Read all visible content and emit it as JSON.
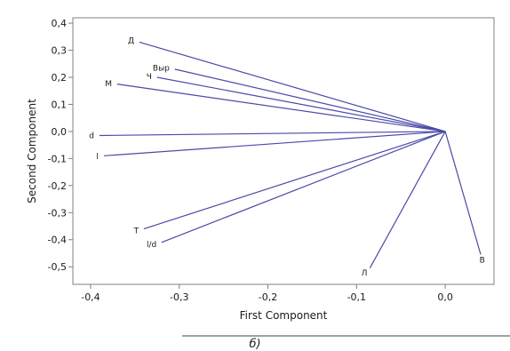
{
  "chart_data": {
    "type": "biplot",
    "xlabel": "First Component",
    "ylabel": "Second Component",
    "xlim": [
      -0.42,
      0.055
    ],
    "ylim": [
      -0.565,
      0.42
    ],
    "x_ticks": [
      -0.4,
      -0.3,
      -0.2,
      -0.1,
      0.0
    ],
    "x_tick_labels": [
      "-0,4",
      "-0,3",
      "-0,2",
      "-0,1",
      "0,0"
    ],
    "y_ticks": [
      0.4,
      0.3,
      0.2,
      0.1,
      0.0,
      -0.1,
      -0.2,
      -0.3,
      -0.4,
      -0.5
    ],
    "y_tick_labels": [
      "0,4",
      "0,3",
      "0,2",
      "0,1",
      "0,0",
      "-0,1",
      "-0,2",
      "-0,3",
      "-0,4",
      "-0,5"
    ],
    "origin": [
      0,
      0
    ],
    "line_color": "#4a4aa8",
    "vectors": [
      {
        "label": "Д",
        "x": -0.345,
        "y": 0.33
      },
      {
        "label": "Выр",
        "x": -0.305,
        "y": 0.23
      },
      {
        "label": "Ч",
        "x": -0.325,
        "y": 0.2
      },
      {
        "label": "М",
        "x": -0.37,
        "y": 0.175
      },
      {
        "label": "d",
        "x": -0.39,
        "y": -0.015
      },
      {
        "label": "l",
        "x": -0.385,
        "y": -0.09
      },
      {
        "label": "Т",
        "x": -0.34,
        "y": -0.36
      },
      {
        "label": "l/d",
        "x": -0.32,
        "y": -0.41
      },
      {
        "label": "Л",
        "x": -0.085,
        "y": -0.505
      },
      {
        "label": "В",
        "x": 0.04,
        "y": -0.455
      }
    ]
  },
  "caption": "б)"
}
